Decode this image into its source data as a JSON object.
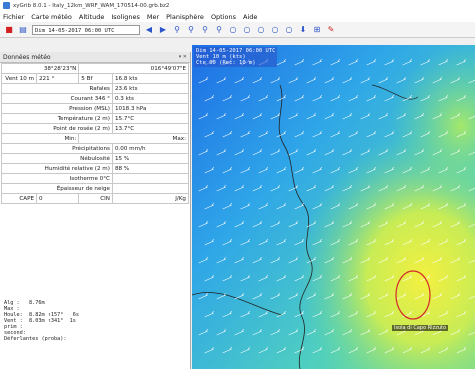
{
  "window": {
    "title": "xyGrib 8.0.1 - Italy_12km_WRF_WAM_170514-00.grb.bz2"
  },
  "menu": [
    "Fichier",
    "Carte météo",
    "Altitude",
    "Isolignes",
    "Mer",
    "Planisphère",
    "Options",
    "Aide"
  ],
  "toolbar": {
    "date": "Dim 14-05-2017 06:00 UTC",
    "icons": [
      "close-red-icon",
      "open-file-icon",
      "prev-arrow-icon",
      "next-arrow-icon",
      "zoom-in-icon",
      "zoom-out-icon",
      "zoom-fit-icon",
      "zoom-area-icon",
      "circle-1-icon",
      "circle-2-icon",
      "circle-3-icon",
      "circle-4-icon",
      "circle-5-icon",
      "download-icon",
      "settings-icon",
      "pencil-red-icon"
    ]
  },
  "panel": {
    "title": "Données météo",
    "coords": {
      "lat": "38°28'23\"N",
      "lon": "016°49'07\"E"
    },
    "wind": {
      "label": "Vent 10 m",
      "dir": "221 °",
      "beaufort": "5 Bf",
      "speed": "16.8 kts"
    },
    "rows": [
      {
        "label": "Rafales",
        "value": "23.6 kts"
      },
      {
        "label": "Courant 346 °",
        "value": "0.3 kts"
      },
      {
        "label": "Pression (MSL)",
        "value": "1018.3 hPa"
      },
      {
        "label": "Température (2 m)",
        "value": "15.7°C"
      },
      {
        "label": "Point de rosée (2 m)",
        "value": "13.7°C"
      }
    ],
    "minmax": {
      "min": "Min:",
      "max": "Max:"
    },
    "rows2": [
      {
        "label": "Précipitations",
        "value": "0.00 mm/h"
      },
      {
        "label": "Nébulosité",
        "value": "15 %"
      },
      {
        "label": "Humidité relative (2 m)",
        "value": "88 %"
      },
      {
        "label": "Isotherme 0°C",
        "value": ""
      },
      {
        "label": "Épaisseur de neige",
        "value": ""
      }
    ],
    "cape": {
      "label": "CAPE",
      "value": "0",
      "cin_label": "CIN",
      "cin_value": "J/Kg"
    }
  },
  "bottom": [
    "Alg :   8.76m",
    "Max :",
    "Houle:  8.82m ↑157°   6s",
    "Vent :  8.03m ↑341°  1s",
    "prim :",
    "second:",
    "Déferlantes (proba):"
  ],
  "map": {
    "overlay": [
      "Dim 14-05-2017 06:00 UTC",
      "Vent 10 m (kts)",
      "Cte 00 (Rec: 10 m)"
    ],
    "place": "Isola di Capo Rizzuto"
  }
}
